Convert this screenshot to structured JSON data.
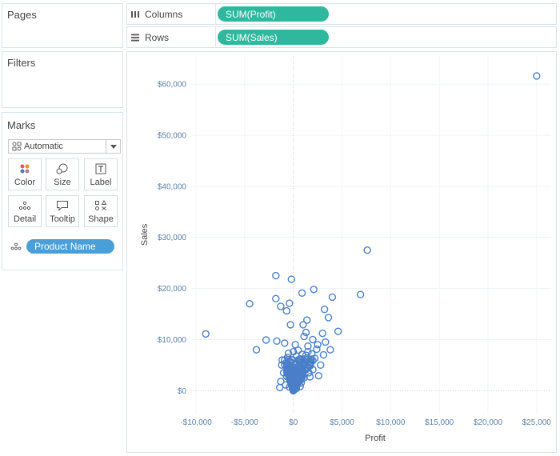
{
  "cards": {
    "pages_title": "Pages",
    "filters_title": "Filters",
    "marks_title": "Marks"
  },
  "marks": {
    "mark_type": "Automatic",
    "buttons": [
      {
        "label": "Color",
        "icon": "color-icon"
      },
      {
        "label": "Size",
        "icon": "size-icon"
      },
      {
        "label": "Label",
        "icon": "label-icon"
      },
      {
        "label": "Detail",
        "icon": "detail-icon"
      },
      {
        "label": "Tooltip",
        "icon": "tooltip-icon"
      },
      {
        "label": "Shape",
        "icon": "shape-icon"
      }
    ],
    "detail_pill": "Product Name"
  },
  "shelves": {
    "columns_label": "Columns",
    "columns_pill": "SUM(Profit)",
    "rows_label": "Rows",
    "rows_pill": "SUM(Sales)"
  },
  "colors": {
    "accent_green": "#2fb89e",
    "pill_blue": "#4a9fd8",
    "mark_blue": "#4a7fc8"
  },
  "chart_data": {
    "type": "scatter",
    "title": "",
    "xlabel": "Profit",
    "ylabel": "Sales",
    "xlim": [
      -10500,
      26500
    ],
    "ylim": [
      -4500,
      65500
    ],
    "x_ticks": [
      -10000,
      -5000,
      0,
      5000,
      10000,
      15000,
      20000,
      25000
    ],
    "x_tick_labels": [
      "-$10,000",
      "-$5,000",
      "$0",
      "$5,000",
      "$10,000",
      "$15,000",
      "$20,000",
      "$25,000"
    ],
    "y_ticks": [
      0,
      10000,
      20000,
      30000,
      40000,
      50000,
      60000
    ],
    "y_tick_labels": [
      "$0",
      "$10,000",
      "$20,000",
      "$30,000",
      "$40,000",
      "$50,000",
      "$60,000"
    ],
    "points": [
      [
        25000,
        61600
      ],
      [
        7600,
        27500
      ],
      [
        6900,
        18800
      ],
      [
        -1800,
        22500
      ],
      [
        -200,
        21800
      ],
      [
        2100,
        19800
      ],
      [
        4000,
        18300
      ],
      [
        -4500,
        17000
      ],
      [
        900,
        19100
      ],
      [
        -1800,
        18000
      ],
      [
        -1300,
        16500
      ],
      [
        -400,
        17100
      ],
      [
        -700,
        15600
      ],
      [
        3200,
        15900
      ],
      [
        3600,
        14300
      ],
      [
        1400,
        13800
      ],
      [
        1000,
        12900
      ],
      [
        -300,
        12900
      ],
      [
        4600,
        11600
      ],
      [
        3000,
        11200
      ],
      [
        1300,
        11400
      ],
      [
        -9000,
        11100
      ],
      [
        -2800,
        9900
      ],
      [
        -1700,
        9700
      ],
      [
        -3800,
        8000
      ],
      [
        3800,
        8000
      ],
      [
        3300,
        9500
      ],
      [
        2000,
        10000
      ],
      [
        1100,
        10600
      ],
      [
        -900,
        9300
      ],
      [
        2500,
        9000
      ],
      [
        3100,
        7000
      ],
      [
        200,
        9000
      ],
      [
        1500,
        8700
      ],
      [
        500,
        7900
      ],
      [
        -600,
        6500
      ],
      [
        1900,
        7200
      ],
      [
        2400,
        8100
      ],
      [
        -1200,
        5000
      ],
      [
        -1000,
        3500
      ],
      [
        -1300,
        1800
      ],
      [
        -1400,
        600
      ],
      [
        -500,
        4200
      ],
      [
        -200,
        2500
      ],
      [
        700,
        5500
      ],
      [
        1200,
        6200
      ],
      [
        1800,
        5600
      ],
      [
        900,
        3800
      ],
      [
        1400,
        4500
      ],
      [
        300,
        6800
      ],
      [
        100,
        5000
      ],
      [
        600,
        3100
      ],
      [
        400,
        2000
      ],
      [
        200,
        1000
      ],
      [
        0,
        300
      ],
      [
        -100,
        1500
      ],
      [
        800,
        1500
      ],
      [
        1100,
        2500
      ],
      [
        1600,
        3500
      ],
      [
        2000,
        4100
      ],
      [
        -700,
        2800
      ],
      [
        -300,
        3800
      ],
      [
        500,
        4300
      ],
      [
        1000,
        4900
      ],
      [
        -800,
        1100
      ],
      [
        300,
        400
      ],
      [
        700,
        800
      ],
      [
        -400,
        700
      ],
      [
        1300,
        6900
      ],
      [
        600,
        6000
      ],
      [
        1700,
        2700
      ],
      [
        2200,
        6300
      ],
      [
        -900,
        6000
      ],
      [
        900,
        7100
      ],
      [
        1500,
        7600
      ],
      [
        0,
        7600
      ],
      [
        -500,
        7300
      ],
      [
        2800,
        5000
      ],
      [
        2600,
        2900
      ],
      [
        200,
        2800
      ]
    ]
  }
}
